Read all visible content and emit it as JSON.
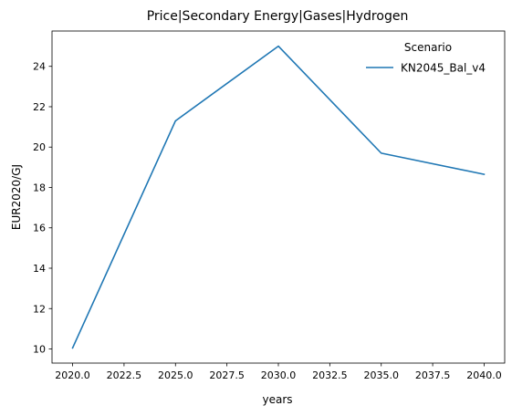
{
  "chart_data": {
    "type": "line",
    "title": "Price|Secondary Energy|Gases|Hydrogen",
    "xlabel": "years",
    "ylabel": "EUR2020/GJ",
    "xlim": [
      2019.0,
      2041.0
    ],
    "ylim": [
      9.3,
      25.75
    ],
    "xticks": [
      2020.0,
      2022.5,
      2025.0,
      2027.5,
      2030.0,
      2032.5,
      2035.0,
      2037.5,
      2040.0
    ],
    "xtick_labels": [
      "2020.0",
      "2022.5",
      "2025.0",
      "2027.5",
      "2030.0",
      "2032.5",
      "2035.0",
      "2037.5",
      "2040.0"
    ],
    "yticks": [
      10,
      12,
      14,
      16,
      18,
      20,
      22,
      24
    ],
    "ytick_labels": [
      "10",
      "12",
      "14",
      "16",
      "18",
      "20",
      "22",
      "24"
    ],
    "grid": false,
    "legend": {
      "title": "Scenario",
      "placement": "top-right"
    },
    "series": [
      {
        "name": "KN2045_Bal_v4",
        "color": "#1f77b4",
        "x": [
          2020,
          2025,
          2030,
          2035,
          2040
        ],
        "y": [
          10.05,
          21.3,
          25.0,
          19.7,
          18.65
        ]
      }
    ]
  }
}
